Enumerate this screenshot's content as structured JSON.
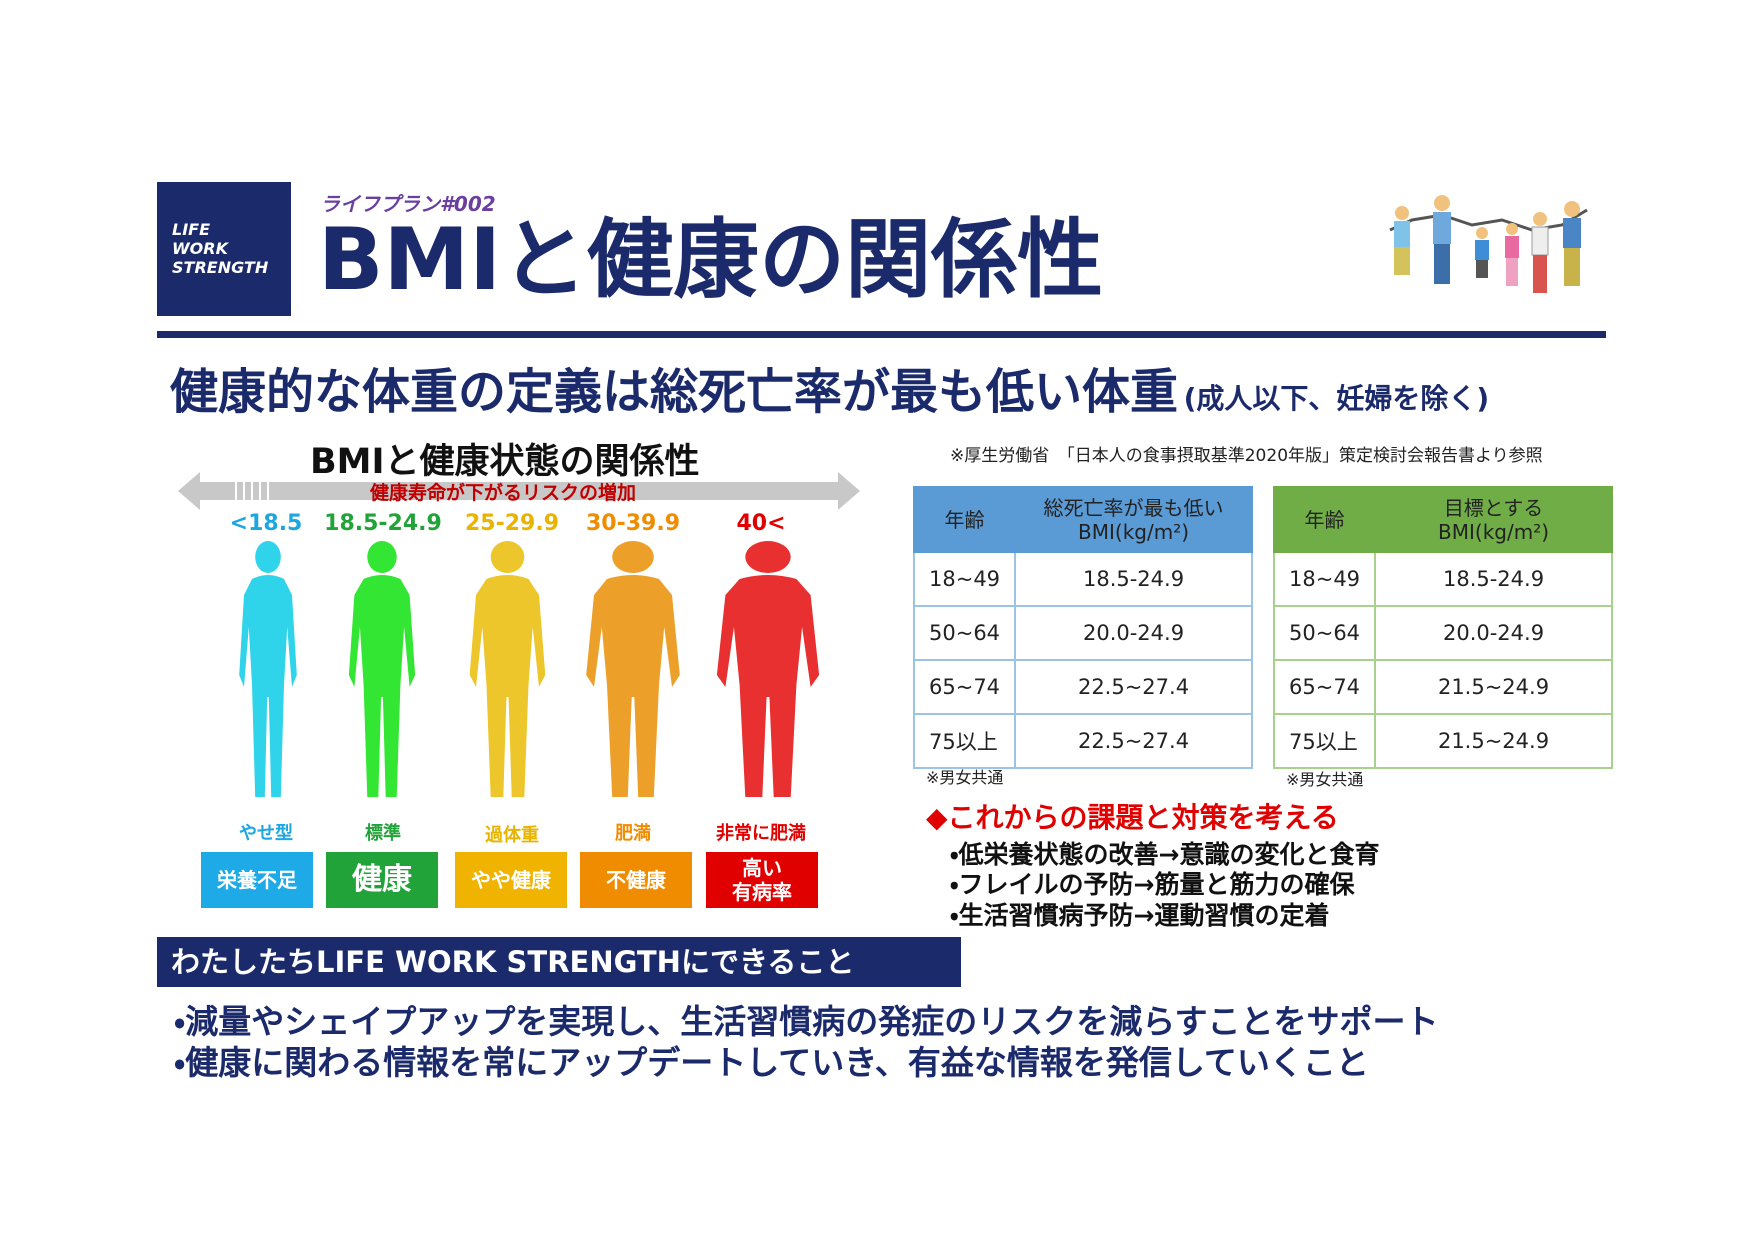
{
  "header": {
    "logo": [
      "LIFE",
      "WORK",
      "STRENGTH"
    ],
    "series": "ライフプラン#002",
    "title": "BMIと健康の関係性"
  },
  "subtitle": {
    "main": "健康的な体重の定義は総死亡率が最も低い体重",
    "note": "(成人以下、妊婦を除く)"
  },
  "infographic": {
    "title": "BMIと健康状態の関係性",
    "arrow_label": "健康寿命が下がるリスクの増加",
    "categories": [
      {
        "range": "<18.5",
        "label": "やせ型",
        "status": "栄養不足"
      },
      {
        "range": "18.5-24.9",
        "label": "標準",
        "status": "健康"
      },
      {
        "range": "25-29.9",
        "label": "過体重",
        "status": "やや健康"
      },
      {
        "range": "30-39.9",
        "label": "肥満",
        "status": "不健康"
      },
      {
        "range": "40<",
        "label": "非常に肥満",
        "status": "高い\n有病率"
      }
    ]
  },
  "source": "※厚生労働省　「日本人の食事摂取基準2020年版」策定検討会報告書より参照",
  "tables": [
    {
      "header": [
        "年齢",
        "総死亡率が最も低い\nBMI(kg/m²)"
      ],
      "rows": [
        [
          "18~49",
          "18.5-24.9"
        ],
        [
          "50~64",
          "20.0-24.9"
        ],
        [
          "65~74",
          "22.5~27.4"
        ],
        [
          "75以上",
          "22.5~27.4"
        ]
      ],
      "note": "※男女共通"
    },
    {
      "header": [
        "年齢",
        "目標とする\nBMI(kg/m²)"
      ],
      "rows": [
        [
          "18~49",
          "18.5-24.9"
        ],
        [
          "50~64",
          "20.0-24.9"
        ],
        [
          "65~74",
          "21.5~24.9"
        ],
        [
          "75以上",
          "21.5~24.9"
        ]
      ],
      "note": "※男女共通"
    }
  ],
  "issues": {
    "title": "◆これからの課題と対策を考える",
    "items": [
      "・低栄養状態の改善→意識の変化と食育",
      "・フレイルの予防→筋量と筋力の確保",
      "・生活習慣病予防→運動習慣の定着"
    ]
  },
  "section": {
    "title": "わたしたちLIFE WORK STRENGTHにできること",
    "items": [
      "・減量やシェイプアップを実現し、生活習慣病の発症のリスクを減らすことをサポート",
      "・健康に関わる情報を常にアップデートしていき、有益な情報を発信していくこと"
    ]
  }
}
